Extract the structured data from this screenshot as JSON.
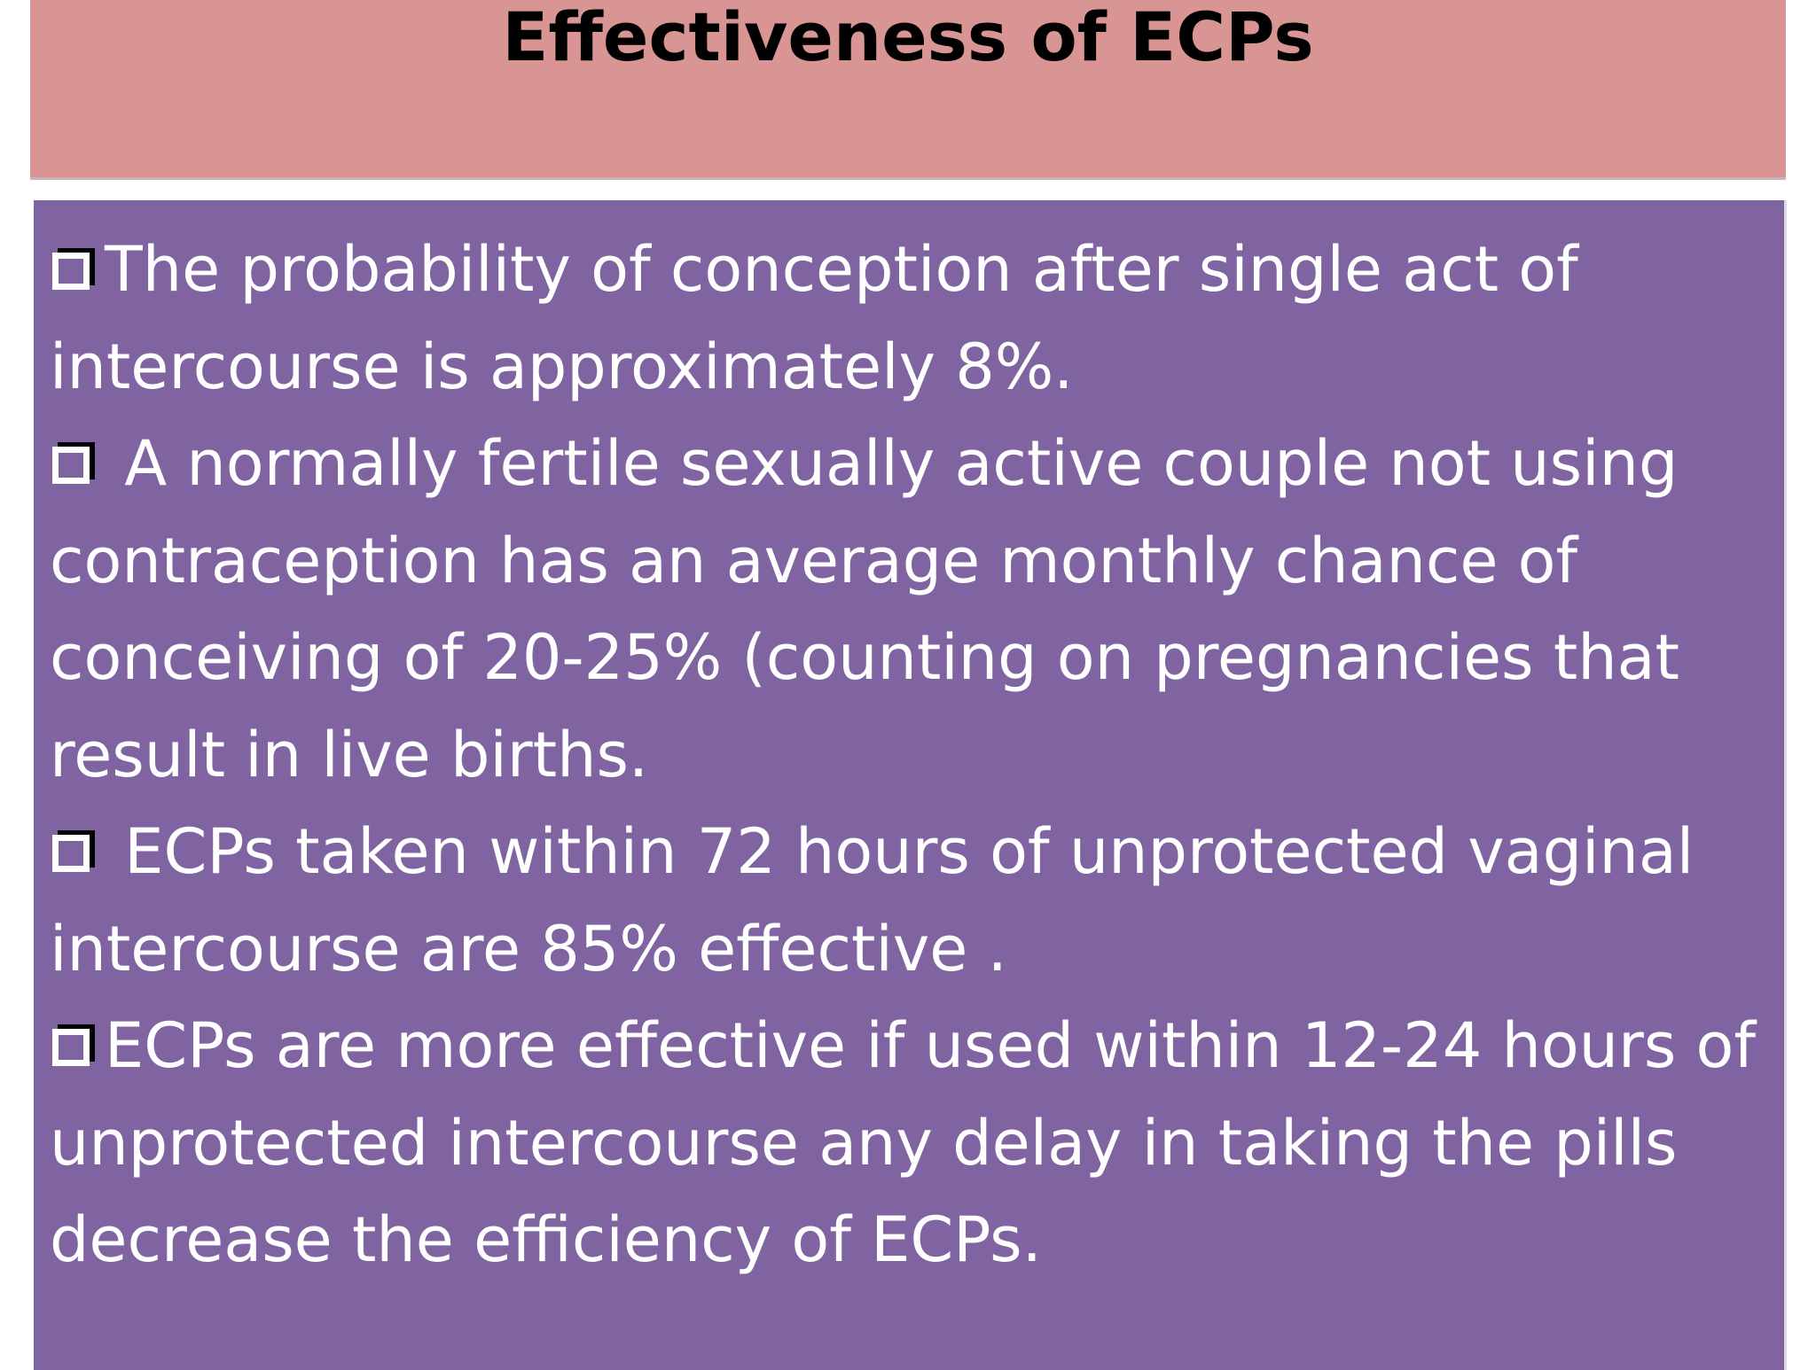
{
  "slide": {
    "title": "Effectiveness of ECPs",
    "bullets": [
      {
        "text": "The probability of conception after single act of intercourse is approximately 8%."
      },
      {
        "text": "A normally fertile sexually active couple not using contraception has an average monthly chance of conceiving of 20-25% (counting on pregnancies that result in live births."
      },
      {
        "text": "ECPs taken within 72 hours of unprotected vaginal intercourse are 85%  effective ."
      },
      {
        "text": "ECPs are more effective if used within 12-24 hours of unprotected intercourse any delay in taking the pills decrease the efficiency of  ECPs."
      }
    ]
  },
  "colors": {
    "title_banner": "#d99594",
    "content_panel": "#8064a2",
    "title_text": "#000000",
    "body_text": "#ffffff"
  },
  "icons": {
    "bullet": "square-checkbox-bullet-icon"
  }
}
